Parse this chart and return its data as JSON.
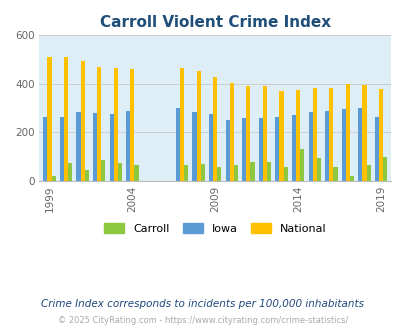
{
  "title": "Carroll Violent Crime Index",
  "subtitle": "Crime Index corresponds to incidents per 100,000 inhabitants",
  "footer": "© 2025 CityRating.com - https://www.cityrating.com/crime-statistics/",
  "carroll_color": "#8dc63f",
  "iowa_color": "#5b9bd5",
  "national_color": "#ffc000",
  "bg_color": "#deeef6",
  "title_color": "#1f4e79",
  "subtitle_color": "#1f497d",
  "footer_color": "#aaaaaa",
  "ylim": [
    0,
    600
  ],
  "yticks": [
    0,
    200,
    400,
    600
  ],
  "bar_width": 0.25,
  "years": [
    1999,
    2000,
    2001,
    2002,
    2003,
    2004,
    2007,
    2008,
    2009,
    2010,
    2011,
    2012,
    2013,
    2014,
    2015,
    2016,
    2017,
    2018,
    2019
  ],
  "iowa": [
    265,
    265,
    285,
    280,
    275,
    290,
    300,
    285,
    275,
    250,
    260,
    260,
    265,
    270,
    285,
    290,
    295,
    300,
    265
  ],
  "national": [
    510,
    510,
    495,
    470,
    465,
    460,
    465,
    455,
    430,
    405,
    390,
    390,
    370,
    375,
    385,
    385,
    400,
    395,
    380
  ],
  "carroll": [
    20,
    75,
    45,
    85,
    75,
    65,
    65,
    70,
    60,
    65,
    80,
    80,
    60,
    130,
    95,
    60,
    20,
    65,
    100
  ],
  "xtick_years": [
    1999,
    2004,
    2009,
    2014,
    2019
  ]
}
